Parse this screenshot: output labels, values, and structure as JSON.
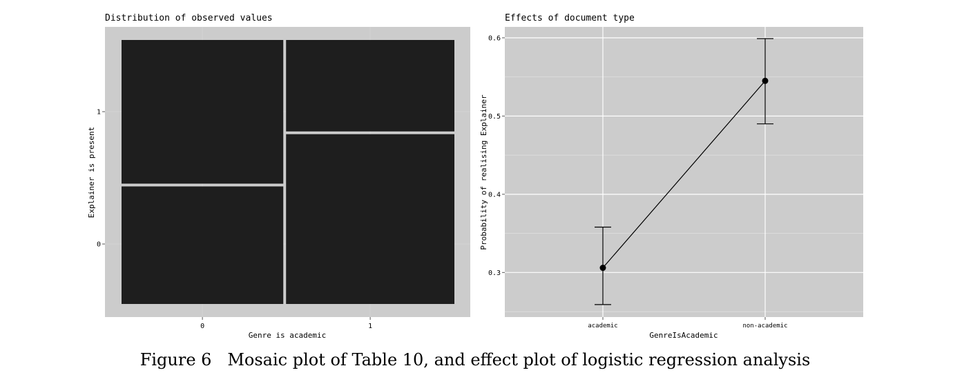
{
  "caption": "Figure 6   Mosaic plot of Table 10, and effect plot of logistic regression analysis",
  "chart_data": [
    {
      "type": "mosaic",
      "title": "Distribution of observed values",
      "xlabel": "Genre is academic",
      "ylabel": "Explainer is present",
      "categories": [
        "0",
        "1"
      ],
      "y_levels": [
        "0",
        "1"
      ],
      "column_widths": [
        0.49,
        0.51
      ],
      "proportion_present": [
        0.55,
        0.35
      ],
      "colors": {
        "panel": "#cccccc",
        "tile": "#1e1e1e",
        "gap": "#e6e6e6"
      }
    },
    {
      "type": "line",
      "title": "Effects of document type",
      "xlabel": "GenreIsAcademic",
      "ylabel": "Probability of realising Explainer",
      "categories": [
        "academic",
        "non-academic"
      ],
      "values": [
        0.306,
        0.545
      ],
      "lower": [
        0.259,
        0.49
      ],
      "upper": [
        0.358,
        0.599
      ],
      "yticks": [
        0.3,
        0.4,
        0.5,
        0.6
      ],
      "ylim": [
        0.243,
        0.614
      ],
      "colors": {
        "panel": "#cccccc",
        "grid": "#ffffff",
        "line": "#000000"
      }
    }
  ]
}
